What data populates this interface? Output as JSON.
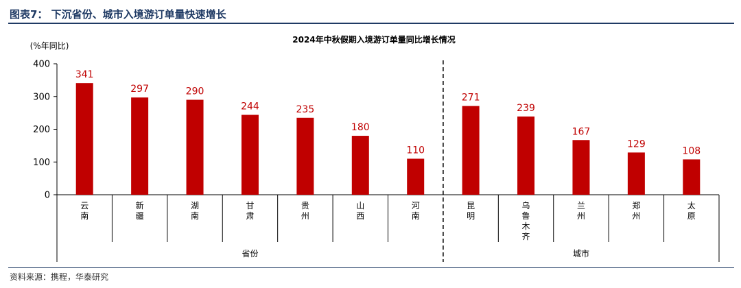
{
  "figure_title": "图表7： 下沉省份、城市入境游订单量快速增长",
  "source": "资料来源：携程，华泰研究",
  "colors": {
    "bar": "#C00000",
    "label": "#C00000",
    "header": "#1f3a64"
  },
  "chart_data": {
    "type": "bar",
    "title": "2024年中秋假期入境游订单量同比增长情况",
    "ylabel": "(%年同比)",
    "ylim": [
      0,
      400
    ],
    "yticks": [
      0,
      100,
      200,
      300,
      400
    ],
    "categories": [
      "云南",
      "新疆",
      "湖南",
      "甘肃",
      "贵州",
      "山西",
      "河南",
      "昆明",
      "乌鲁木齐",
      "兰州",
      "郑州",
      "太原"
    ],
    "values": [
      341,
      297,
      290,
      244,
      235,
      180,
      110,
      271,
      239,
      167,
      129,
      108
    ],
    "groups": [
      {
        "label": "省份",
        "count": 7
      },
      {
        "label": "城市",
        "count": 5
      }
    ],
    "group_separator": "dashed",
    "data_labels": true
  }
}
